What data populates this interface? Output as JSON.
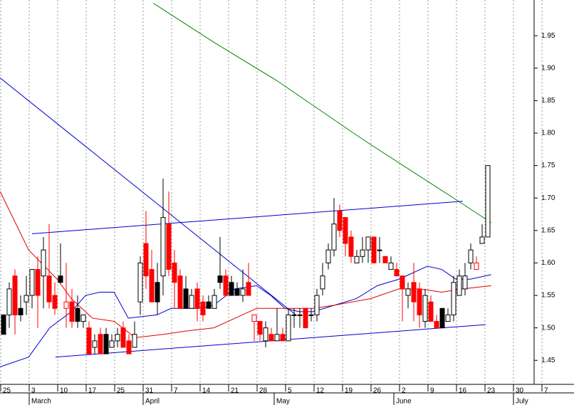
{
  "chart_data": {
    "type": "candlestick",
    "categories": [
      "25",
      null,
      null,
      null,
      null,
      "3",
      null,
      null,
      null,
      null,
      "10",
      null,
      null,
      null,
      null,
      "17",
      null,
      null,
      null,
      null,
      "25",
      null,
      null,
      null,
      null,
      "31",
      null,
      null,
      null,
      null,
      "7",
      null,
      null,
      null,
      null,
      "14",
      null,
      null,
      null,
      null,
      "21",
      null,
      null,
      null,
      null,
      "28",
      null,
      null,
      null,
      null,
      "5",
      null,
      null,
      null,
      null,
      "12",
      null,
      null,
      null,
      null,
      "19",
      null,
      null,
      null,
      null,
      "26",
      null,
      null,
      null,
      null,
      "2",
      null,
      null,
      null,
      null,
      "9",
      null,
      null,
      null,
      null,
      "16",
      null,
      null,
      null,
      null,
      "23",
      null,
      null,
      null,
      null,
      "30",
      null,
      null,
      null,
      null,
      "7"
    ],
    "months": [
      {
        "label": "March",
        "at": 5
      },
      {
        "label": "April",
        "at": 25
      },
      {
        "label": "May",
        "at": 48
      },
      {
        "label": "June",
        "at": 69
      },
      {
        "label": "July",
        "at": 90
      }
    ],
    "open": [
      1.52,
      1.52,
      1.58,
      1.53,
      1.54,
      1.55,
      1.59,
      1.58,
      1.58,
      1.55,
      1.58,
      1.53,
      1.54,
      1.53,
      1.51,
      1.5,
      1.47,
      1.49,
      1.49,
      1.47,
      1.48,
      1.5,
      1.48,
      1.47,
      1.54,
      1.63,
      1.59,
      1.57,
      1.58,
      1.66,
      1.6,
      1.58,
      1.56,
      1.53,
      1.56,
      1.54,
      1.54,
      1.53,
      1.58,
      1.58,
      1.57,
      1.56,
      1.55,
      1.57,
      1.51,
      1.51,
      1.48,
      1.49,
      1.48,
      1.49,
      1.48,
      1.52,
      1.52,
      1.53,
      1.52,
      1.52,
      1.56,
      1.6,
      1.62,
      1.68,
      1.67,
      1.64,
      1.6,
      1.61,
      1.62,
      1.64,
      1.62,
      1.61,
      1.59,
      1.59,
      1.58,
      1.55,
      1.57,
      1.56,
      1.51,
      1.54,
      1.51,
      1.53,
      1.51,
      1.52,
      1.55,
      1.56,
      1.6,
      1.59,
      1.63,
      1.64,
      null,
      null,
      null,
      null,
      null,
      null,
      null,
      null,
      null,
      null
    ],
    "high": [
      1.52,
      1.57,
      1.59,
      1.55,
      1.58,
      1.59,
      1.61,
      1.64,
      1.66,
      1.57,
      1.63,
      1.6,
      1.56,
      1.55,
      1.52,
      1.51,
      1.49,
      1.5,
      1.5,
      1.49,
      1.5,
      1.51,
      1.49,
      1.51,
      1.61,
      1.68,
      1.62,
      1.6,
      1.73,
      1.71,
      1.62,
      1.59,
      1.58,
      1.56,
      1.57,
      1.55,
      1.55,
      1.56,
      1.64,
      1.59,
      1.58,
      1.57,
      1.59,
      1.6,
      1.52,
      1.51,
      1.51,
      1.5,
      1.53,
      1.5,
      1.53,
      1.53,
      1.53,
      1.53,
      1.53,
      1.56,
      1.6,
      1.63,
      1.7,
      1.69,
      1.67,
      1.65,
      1.62,
      1.64,
      1.64,
      1.64,
      1.64,
      1.61,
      1.61,
      1.6,
      1.58,
      1.57,
      1.6,
      1.57,
      1.56,
      1.55,
      1.52,
      1.53,
      1.53,
      1.58,
      1.59,
      1.6,
      1.63,
      1.61,
      1.66,
      1.75,
      null,
      null,
      null,
      null,
      null,
      null,
      null,
      null,
      null,
      null
    ],
    "low": [
      1.49,
      1.5,
      1.49,
      1.51,
      1.52,
      1.53,
      1.5,
      1.53,
      1.53,
      1.52,
      1.57,
      1.5,
      1.5,
      1.5,
      1.5,
      1.46,
      1.46,
      1.46,
      1.46,
      1.47,
      1.47,
      1.47,
      1.46,
      1.47,
      1.52,
      1.56,
      1.54,
      1.52,
      1.55,
      1.58,
      1.53,
      1.53,
      1.53,
      1.53,
      1.51,
      1.51,
      1.53,
      1.53,
      1.56,
      1.55,
      1.55,
      1.55,
      1.54,
      1.55,
      1.48,
      1.48,
      1.47,
      1.48,
      1.48,
      1.48,
      1.48,
      1.5,
      1.5,
      1.5,
      1.51,
      1.51,
      1.55,
      1.59,
      1.61,
      1.64,
      1.61,
      1.6,
      1.6,
      1.6,
      1.6,
      1.6,
      1.6,
      1.6,
      1.59,
      1.58,
      1.51,
      1.53,
      1.51,
      1.5,
      1.5,
      1.51,
      1.5,
      1.5,
      1.51,
      1.51,
      1.55,
      1.55,
      1.59,
      1.59,
      1.63,
      1.64,
      null,
      null,
      null,
      null,
      null,
      null,
      null,
      null,
      null,
      null
    ],
    "close": [
      1.49,
      1.56,
      1.52,
      1.52,
      1.55,
      1.59,
      1.55,
      1.62,
      1.54,
      1.53,
      1.57,
      1.54,
      1.51,
      1.51,
      1.52,
      1.46,
      1.48,
      1.46,
      1.46,
      1.48,
      1.49,
      1.47,
      1.46,
      1.49,
      1.6,
      1.58,
      1.54,
      1.54,
      1.67,
      1.59,
      1.57,
      1.53,
      1.53,
      1.55,
      1.53,
      1.52,
      1.53,
      1.55,
      1.57,
      1.55,
      1.55,
      1.55,
      1.56,
      1.55,
      1.52,
      1.49,
      1.5,
      1.48,
      1.49,
      1.48,
      1.52,
      1.52,
      1.52,
      1.5,
      1.52,
      1.55,
      1.58,
      1.62,
      1.66,
      1.65,
      1.63,
      1.61,
      1.61,
      1.62,
      1.64,
      1.6,
      1.62,
      1.6,
      1.6,
      1.58,
      1.56,
      1.56,
      1.54,
      1.52,
      1.55,
      1.51,
      1.5,
      1.5,
      1.52,
      1.57,
      1.58,
      1.58,
      1.62,
      1.6,
      1.64,
      1.75,
      null,
      null,
      null,
      null,
      null,
      null,
      null,
      null,
      null,
      null
    ],
    "up_color": "#000000",
    "down_color": "#ff0000",
    "lines": [
      {
        "color": "#0000cc",
        "x": [
          -0.6,
          4.4,
          8.1,
          11.9,
          14.4,
          16.9,
          19.4,
          21.9,
          26.9,
          29.4,
          34.4,
          36.9,
          40.6,
          44.4,
          46.9,
          49.4,
          51.9,
          54.4,
          58.1,
          61.9,
          65.6,
          69.4,
          71.9,
          74.4,
          76.9,
          79.4,
          81.9,
          85.6
        ],
        "values": [
          1.44,
          1.455,
          1.5,
          1.525,
          1.55,
          1.555,
          1.555,
          1.515,
          1.52,
          1.53,
          1.53,
          1.535,
          1.56,
          1.565,
          1.55,
          1.53,
          1.525,
          1.525,
          1.535,
          1.545,
          1.565,
          1.575,
          1.585,
          1.595,
          1.59,
          1.575,
          1.575,
          1.582
        ]
      },
      {
        "color": "#dd0000",
        "x": [
          -0.6,
          4.4,
          9.4,
          11.9,
          15.6,
          19.4,
          23.1,
          28.1,
          31.9,
          36.9,
          41.9,
          44.4,
          49.4,
          54.4,
          58.1,
          64.4,
          69.4,
          73.1,
          76.9,
          80.6,
          85.6
        ],
        "values": [
          1.71,
          1.62,
          1.575,
          1.545,
          1.515,
          1.51,
          1.485,
          1.49,
          1.495,
          1.5,
          1.52,
          1.53,
          1.53,
          1.53,
          1.535,
          1.545,
          1.56,
          1.56,
          1.555,
          1.56,
          1.565
        ]
      },
      {
        "color": "#008800",
        "x": [
          26.3,
          36.9,
          48.1,
          53.1,
          63.1,
          71.9,
          78.1,
          85.6
        ],
        "values": [
          2.0,
          1.94,
          1.88,
          1.85,
          1.79,
          1.74,
          1.705,
          1.662
        ]
      },
      {
        "color": "#0000cc",
        "x": [
          -0.6,
          51.3
        ],
        "values": [
          1.885,
          1.52
        ]
      },
      {
        "color": "#0000cc",
        "x": [
          5,
          80.6
        ],
        "values": [
          1.645,
          1.695
        ]
      },
      {
        "color": "#0000cc",
        "x": [
          9.1,
          84.6
        ],
        "values": [
          1.455,
          1.505
        ]
      }
    ],
    "ylim": [
      1.413,
      2.005
    ],
    "yticks": [
      {
        "value": 1.45,
        "label": "1.45"
      },
      {
        "value": 1.5,
        "label": "1.50"
      },
      {
        "value": 1.55,
        "label": "1.55"
      },
      {
        "value": 1.6,
        "label": "1.60"
      },
      {
        "value": 1.65,
        "label": "1.65"
      },
      {
        "value": 1.7,
        "label": "1.70"
      },
      {
        "value": 1.75,
        "label": "1.75"
      },
      {
        "value": 1.8,
        "label": "1.80"
      },
      {
        "value": 1.85,
        "label": "1.85"
      },
      {
        "value": 1.9,
        "label": "1.90"
      },
      {
        "value": 1.95,
        "label": "1.95"
      }
    ],
    "grid": true
  }
}
